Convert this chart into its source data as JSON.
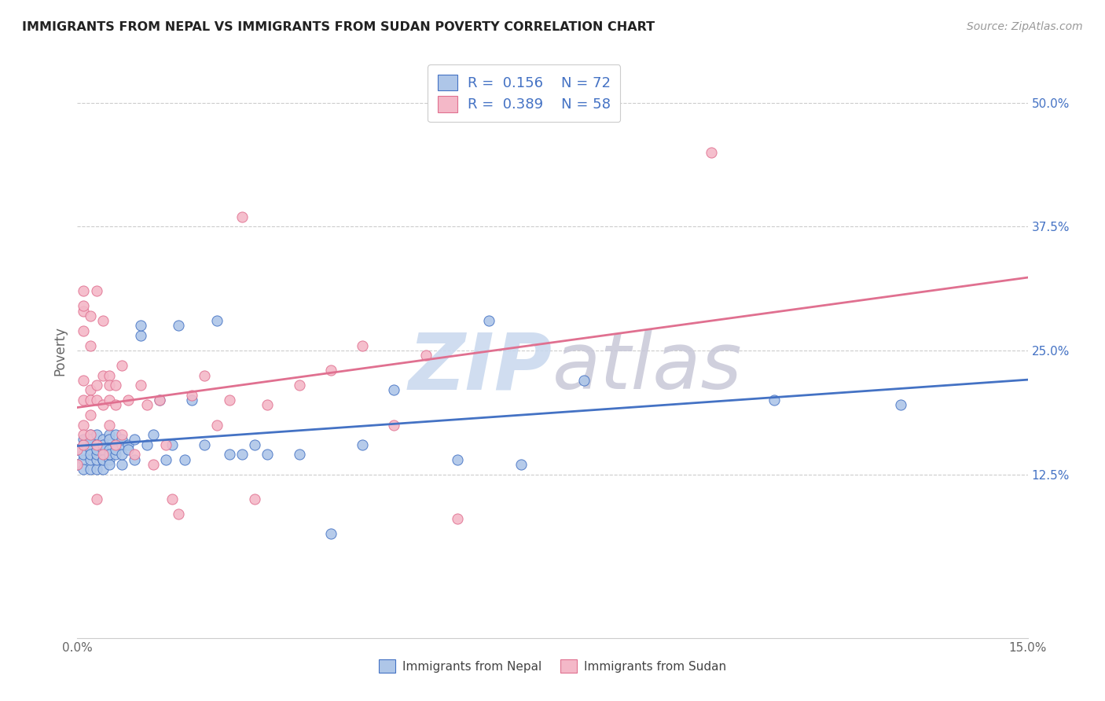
{
  "title": "IMMIGRANTS FROM NEPAL VS IMMIGRANTS FROM SUDAN POVERTY CORRELATION CHART",
  "source": "Source: ZipAtlas.com",
  "ylabel_label": "Poverty",
  "nepal_R": 0.156,
  "nepal_N": 72,
  "sudan_R": 0.389,
  "sudan_N": 58,
  "nepal_color": "#aec6e8",
  "sudan_color": "#f4b8c8",
  "nepal_line_color": "#4472c4",
  "sudan_line_color": "#e07090",
  "legend_nepal_label": "Immigrants from Nepal",
  "legend_sudan_label": "Immigrants from Sudan",
  "xlim": [
    0.0,
    0.15
  ],
  "ylim": [
    -0.04,
    0.54
  ],
  "nepal_x": [
    0.0,
    0.0,
    0.001,
    0.001,
    0.001,
    0.001,
    0.001,
    0.002,
    0.002,
    0.002,
    0.002,
    0.002,
    0.002,
    0.002,
    0.003,
    0.003,
    0.003,
    0.003,
    0.003,
    0.003,
    0.003,
    0.004,
    0.004,
    0.004,
    0.004,
    0.004,
    0.004,
    0.004,
    0.005,
    0.005,
    0.005,
    0.005,
    0.005,
    0.005,
    0.006,
    0.006,
    0.006,
    0.006,
    0.007,
    0.007,
    0.007,
    0.007,
    0.008,
    0.008,
    0.009,
    0.009,
    0.01,
    0.01,
    0.011,
    0.012,
    0.013,
    0.014,
    0.015,
    0.016,
    0.017,
    0.018,
    0.02,
    0.022,
    0.024,
    0.026,
    0.028,
    0.03,
    0.035,
    0.04,
    0.045,
    0.05,
    0.06,
    0.065,
    0.07,
    0.08,
    0.11,
    0.13
  ],
  "nepal_y": [
    0.135,
    0.15,
    0.14,
    0.16,
    0.13,
    0.155,
    0.145,
    0.155,
    0.13,
    0.165,
    0.14,
    0.15,
    0.16,
    0.145,
    0.155,
    0.13,
    0.14,
    0.155,
    0.165,
    0.145,
    0.15,
    0.14,
    0.155,
    0.13,
    0.16,
    0.15,
    0.14,
    0.155,
    0.165,
    0.14,
    0.15,
    0.135,
    0.145,
    0.16,
    0.155,
    0.145,
    0.165,
    0.15,
    0.155,
    0.135,
    0.145,
    0.16,
    0.155,
    0.15,
    0.16,
    0.14,
    0.265,
    0.275,
    0.155,
    0.165,
    0.2,
    0.14,
    0.155,
    0.275,
    0.14,
    0.2,
    0.155,
    0.28,
    0.145,
    0.145,
    0.155,
    0.145,
    0.145,
    0.065,
    0.155,
    0.21,
    0.14,
    0.28,
    0.135,
    0.22,
    0.2,
    0.195
  ],
  "sudan_x": [
    0.0,
    0.0,
    0.001,
    0.001,
    0.001,
    0.001,
    0.001,
    0.001,
    0.001,
    0.001,
    0.001,
    0.002,
    0.002,
    0.002,
    0.002,
    0.002,
    0.002,
    0.003,
    0.003,
    0.003,
    0.003,
    0.003,
    0.004,
    0.004,
    0.004,
    0.004,
    0.005,
    0.005,
    0.005,
    0.005,
    0.006,
    0.006,
    0.006,
    0.007,
    0.007,
    0.008,
    0.009,
    0.01,
    0.011,
    0.012,
    0.013,
    0.014,
    0.015,
    0.016,
    0.018,
    0.02,
    0.022,
    0.024,
    0.026,
    0.028,
    0.03,
    0.035,
    0.04,
    0.045,
    0.05,
    0.055,
    0.06,
    0.1
  ],
  "sudan_y": [
    0.135,
    0.15,
    0.2,
    0.22,
    0.175,
    0.29,
    0.31,
    0.155,
    0.165,
    0.27,
    0.295,
    0.21,
    0.255,
    0.2,
    0.285,
    0.185,
    0.165,
    0.2,
    0.215,
    0.155,
    0.1,
    0.31,
    0.225,
    0.195,
    0.145,
    0.28,
    0.225,
    0.215,
    0.2,
    0.175,
    0.195,
    0.215,
    0.155,
    0.235,
    0.165,
    0.2,
    0.145,
    0.215,
    0.195,
    0.135,
    0.2,
    0.155,
    0.1,
    0.085,
    0.205,
    0.225,
    0.175,
    0.2,
    0.385,
    0.1,
    0.195,
    0.215,
    0.23,
    0.255,
    0.175,
    0.245,
    0.08,
    0.45
  ],
  "watermark_text": "ZIPatlas",
  "watermark_zip_color": "#c8d8ee",
  "watermark_atlas_color": "#c8c8d8"
}
